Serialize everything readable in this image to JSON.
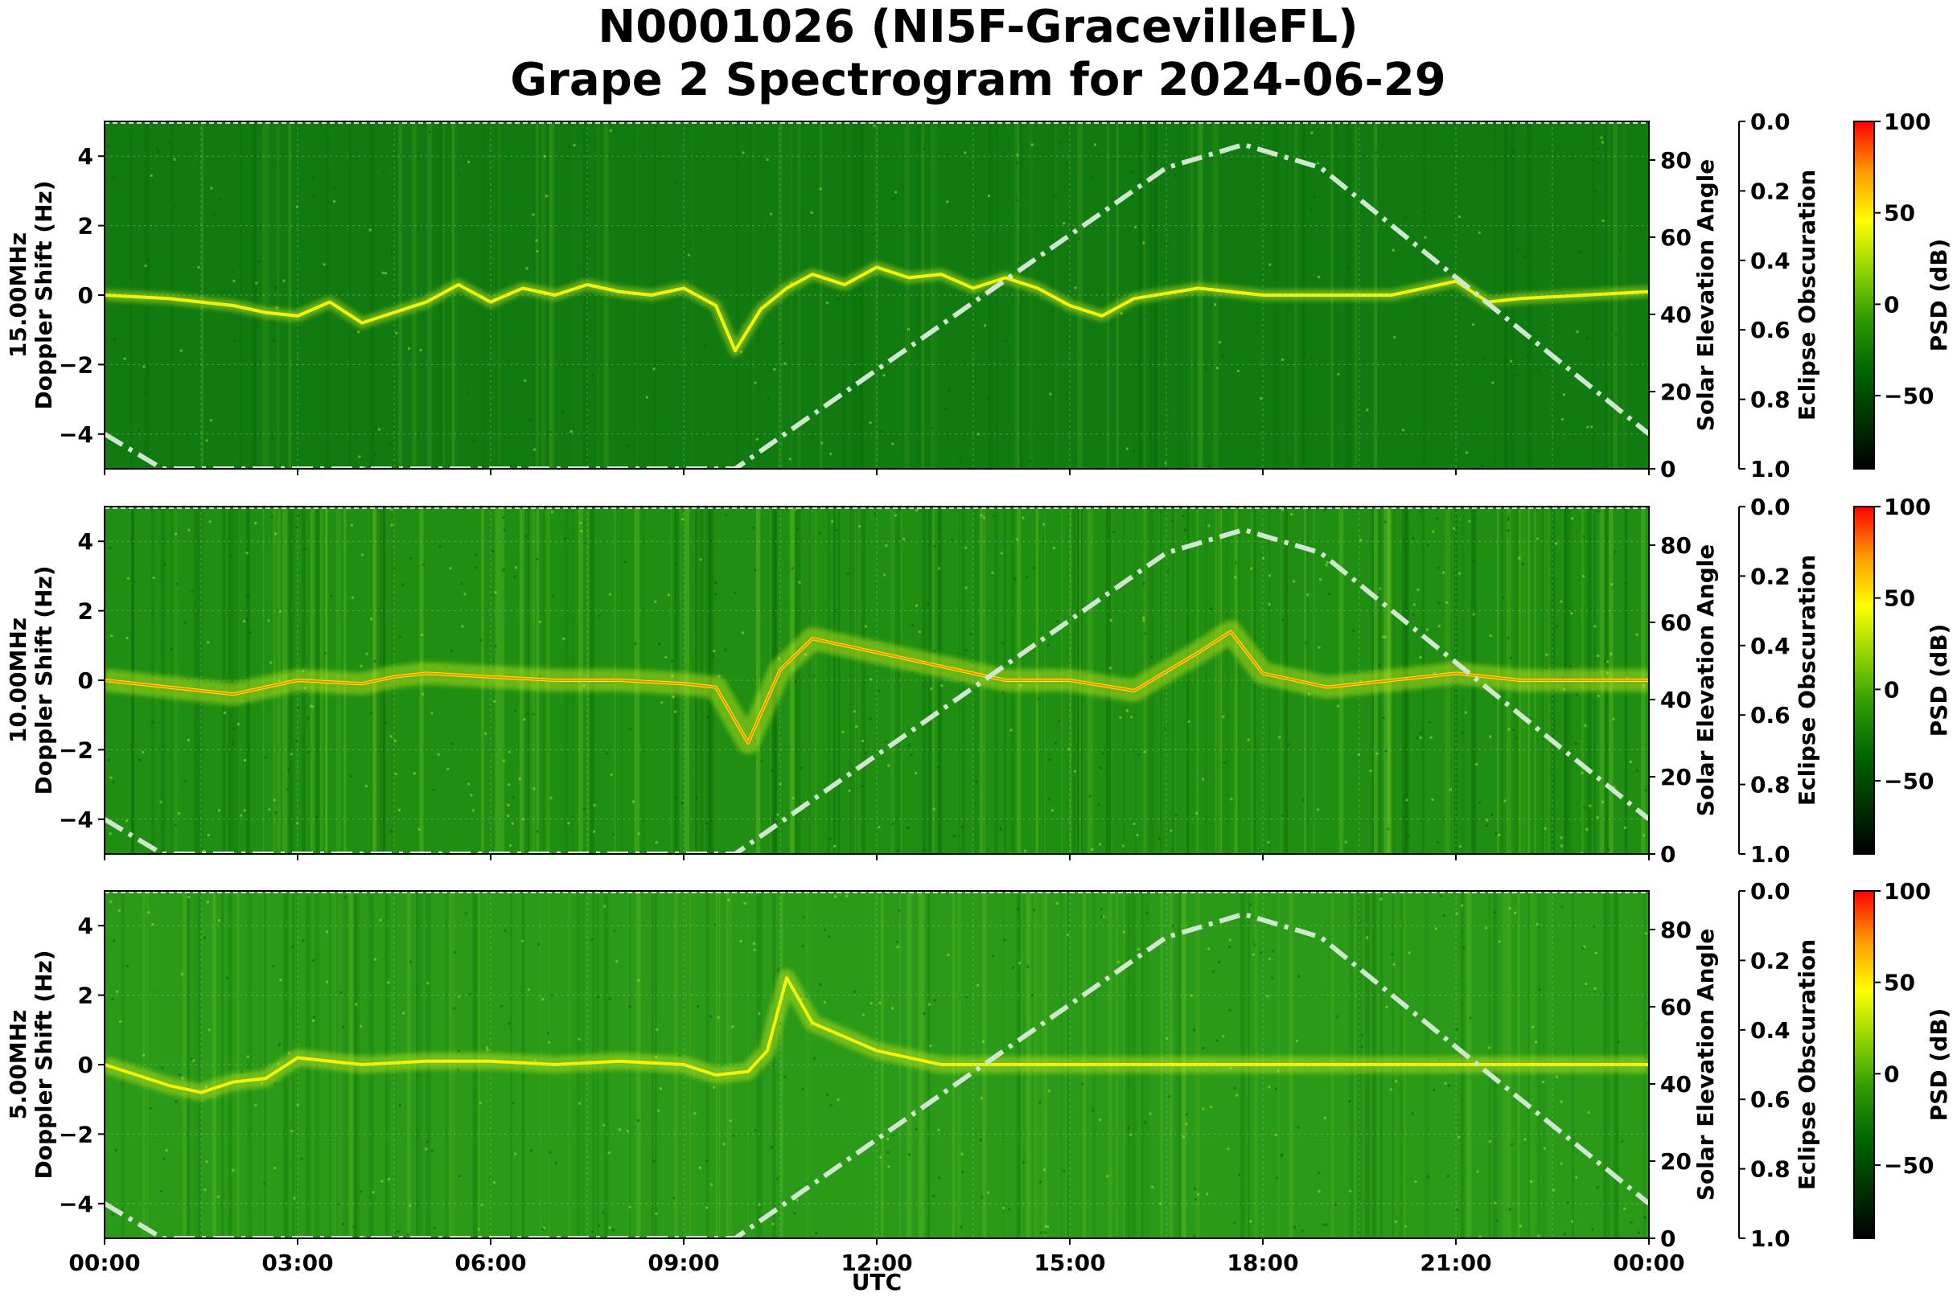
{
  "chart_data": {
    "type": "heatmap",
    "title_line1": "N0001026 (NI5F-GracevilleFL)",
    "title_line2": "Grape 2 Spectrogram for 2024-06-29",
    "xlabel": "UTC",
    "x_ticks": [
      "00:00",
      "03:00",
      "06:00",
      "09:00",
      "12:00",
      "15:00",
      "18:00",
      "21:00",
      "00:00"
    ],
    "xlim_hours": [
      0,
      24
    ],
    "panels": [
      {
        "band": "15.00MHz",
        "ylabel_band": "15.00MHz",
        "ylabel": "Doppler Shift (Hz)",
        "ylim": [
          -5,
          5
        ],
        "y_ticks": [
          -4,
          -2,
          0,
          2,
          4
        ],
        "activity": "low",
        "traces": [
          {
            "name": "main",
            "hours": [
              0,
              1,
              2,
              2.5,
              3,
              3.5,
              4,
              4.5,
              5,
              5.5,
              6,
              6.5,
              7,
              7.5,
              8,
              8.5,
              9,
              9.5,
              9.8,
              10.2,
              10.6,
              11,
              11.5,
              12,
              12.5,
              13,
              13.5,
              14,
              14.5,
              15,
              15.5,
              16,
              17,
              18,
              19,
              20,
              20.5,
              21,
              21.5,
              22,
              23,
              24
            ],
            "values": [
              0,
              -0.1,
              -0.3,
              -0.5,
              -0.6,
              -0.2,
              -0.8,
              -0.5,
              -0.2,
              0.3,
              -0.2,
              0.2,
              0,
              0.3,
              0.1,
              0,
              0.2,
              -0.3,
              -1.6,
              -0.4,
              0.2,
              0.6,
              0.3,
              0.8,
              0.5,
              0.6,
              0.2,
              0.5,
              0.2,
              -0.3,
              -0.6,
              -0.1,
              0.2,
              0,
              0,
              0,
              0.2,
              0.4,
              -0.2,
              -0.1,
              0,
              0.1
            ]
          }
        ]
      },
      {
        "band": "10.00MHz",
        "ylabel_band": "10.00MHz",
        "ylabel": "Doppler Shift (Hz)",
        "ylim": [
          -5,
          5
        ],
        "y_ticks": [
          -4,
          -2,
          0,
          2,
          4
        ],
        "activity": "high",
        "traces": [
          {
            "name": "main",
            "hours": [
              0,
              1,
              2,
              3,
              4,
              4.5,
              5,
              6,
              7,
              8,
              9,
              9.5,
              10,
              10.5,
              11,
              12,
              13,
              14,
              15,
              16,
              17,
              17.5,
              18,
              19,
              20,
              21,
              22,
              23,
              24
            ],
            "values": [
              0,
              -0.2,
              -0.4,
              0,
              -0.1,
              0.1,
              0.2,
              0.1,
              0,
              0,
              -0.1,
              -0.2,
              -1.8,
              0.3,
              1.2,
              0.8,
              0.4,
              0,
              0,
              -0.3,
              0.8,
              1.4,
              0.2,
              -0.2,
              0,
              0.2,
              0,
              0,
              0
            ]
          }
        ]
      },
      {
        "band": "5.00MHz",
        "ylabel_band": "5.00MHz",
        "ylabel": "Doppler Shift (Hz)",
        "ylim": [
          -5,
          5
        ],
        "y_ticks": [
          -4,
          -2,
          0,
          2,
          4
        ],
        "activity": "medium",
        "traces": [
          {
            "name": "main",
            "hours": [
              0,
              1,
              1.5,
              2,
              2.5,
              3,
              4,
              5,
              6,
              7,
              8,
              9,
              9.5,
              10,
              10.3,
              10.6,
              11,
              11.5,
              12,
              13,
              14,
              24
            ],
            "values": [
              0,
              -0.6,
              -0.8,
              -0.5,
              -0.4,
              0.2,
              0,
              0.1,
              0.1,
              0,
              0.1,
              0,
              -0.3,
              -0.2,
              0.4,
              2.5,
              1.2,
              0.8,
              0.4,
              0,
              0,
              0
            ]
          }
        ]
      }
    ],
    "solar_elevation": {
      "axis_label": "Solar Elevation Angle",
      "ylim": [
        0,
        90
      ],
      "y_ticks": [
        0,
        20,
        40,
        60,
        80
      ],
      "color": "#cfe6cf",
      "hours": [
        0,
        0.9,
        9.8,
        16.5,
        17.7,
        18.9,
        24
      ],
      "values": [
        9,
        0,
        0,
        78,
        84,
        78,
        9
      ]
    },
    "eclipse": {
      "axis_label": "Eclipse Obscuration",
      "ylim": [
        0,
        1
      ],
      "inverted": true,
      "y_ticks": [
        "0.0",
        "0.2",
        "0.4",
        "0.6",
        "0.8",
        "1.0"
      ]
    },
    "colorbar": {
      "label": "PSD (dB)",
      "range": [
        -90,
        100
      ],
      "ticks": [
        100,
        50,
        0,
        -50
      ],
      "tick_labels": [
        "100",
        "50",
        "0",
        "−50"
      ],
      "colors": [
        "#000000",
        "#003300",
        "#006600",
        "#2e9a00",
        "#8fd400",
        "#ffff00",
        "#ff9a00",
        "#ff0000"
      ]
    }
  }
}
